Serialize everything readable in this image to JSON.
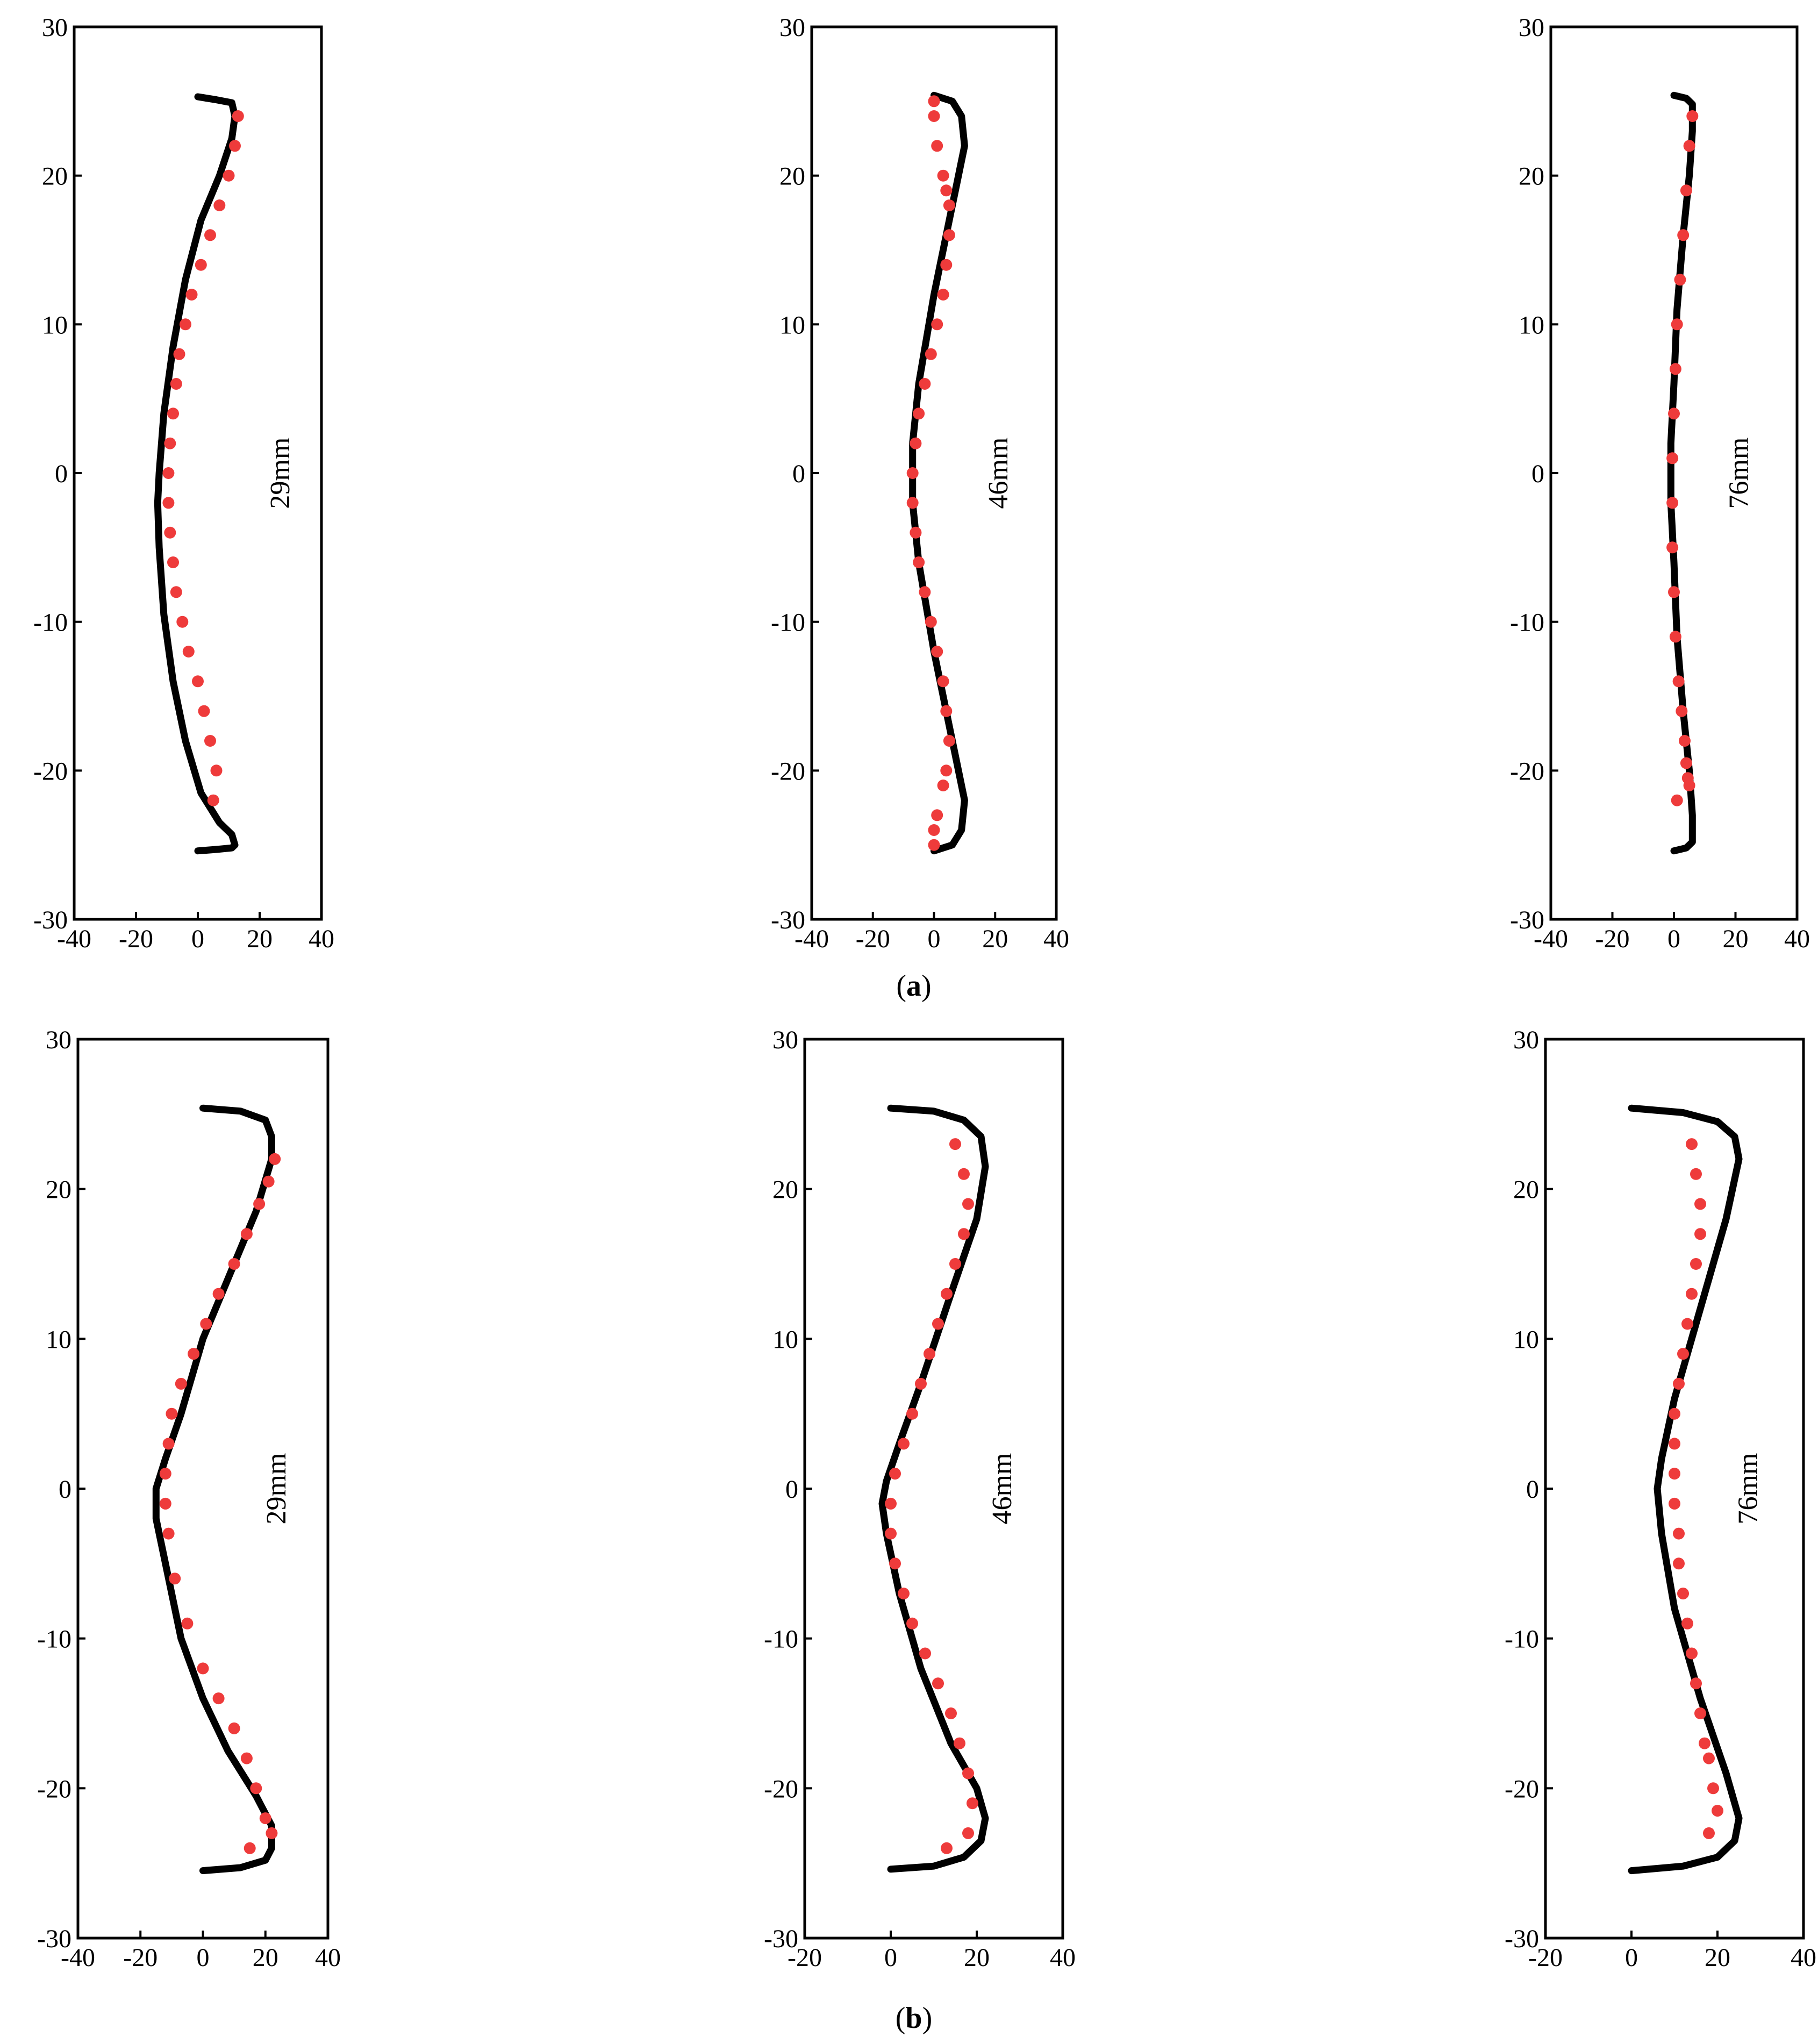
{
  "colors": {
    "simulation": "#000000",
    "experiment": "#ee3b3b",
    "axes": "#000000"
  },
  "captions": {
    "a": {
      "open": "(",
      "letter": "a",
      "close": ")"
    },
    "b": {
      "open": "(",
      "letter": "b",
      "close": ")"
    }
  },
  "chart_data": [
    {
      "id": "a1",
      "type": "scatter",
      "annotation": "29mm",
      "xlim": [
        -40,
        40
      ],
      "ylim": [
        -30,
        30
      ],
      "xticks": [
        "-40",
        "-20",
        "0",
        "20",
        "40"
      ],
      "yticks": [
        "30",
        "20",
        "10",
        "0",
        "-10",
        "-20",
        "-30"
      ],
      "grid": false,
      "series": [
        {
          "kind": "line",
          "x": [
            0,
            6,
            11,
            12,
            11,
            7,
            1,
            -4,
            -8,
            -11,
            -12.5,
            -13,
            -12.5,
            -11,
            -8,
            -4,
            1,
            7,
            11,
            12,
            11,
            6,
            0
          ],
          "y": [
            25.3,
            25.1,
            24.9,
            24,
            22.5,
            20,
            17,
            13,
            8.5,
            4,
            0,
            -2,
            -5,
            -9.5,
            -14,
            -18,
            -21.5,
            -23.5,
            -24.3,
            -25,
            -25.2,
            -25.3,
            -25.4
          ]
        },
        {
          "kind": "points",
          "x": [
            13,
            12,
            10,
            7,
            4,
            1,
            -2,
            -4,
            -6,
            -7,
            -8,
            -9,
            -9.5,
            -9.5,
            -9,
            -8,
            -7,
            -5,
            -3,
            0,
            2,
            4,
            6,
            5
          ],
          "y": [
            24,
            22,
            20,
            18,
            16,
            14,
            12,
            10,
            8,
            6,
            4,
            2,
            0,
            -2,
            -4,
            -6,
            -8,
            -10,
            -12,
            -14,
            -16,
            -18,
            -20,
            -22
          ]
        }
      ]
    },
    {
      "id": "a2",
      "type": "scatter",
      "annotation": "46mm",
      "xlim": [
        -40,
        40
      ],
      "ylim": [
        -30,
        30
      ],
      "xticks": [
        "-40",
        "-20",
        "0",
        "20",
        "40"
      ],
      "yticks": [
        "30",
        "20",
        "10",
        "0",
        "-10",
        "-20",
        "-30"
      ],
      "grid": false,
      "series": [
        {
          "kind": "line",
          "x": [
            0,
            6,
            9,
            10,
            8,
            5,
            0,
            -5,
            -7,
            -7,
            -5,
            0,
            5,
            8,
            10,
            9,
            6,
            0
          ],
          "y": [
            25.4,
            25,
            24,
            22,
            20,
            17,
            12,
            6,
            2,
            -2,
            -6,
            -12,
            -17,
            -20,
            -22,
            -24,
            -25,
            -25.4
          ]
        },
        {
          "kind": "points",
          "x": [
            0,
            0,
            1,
            3,
            4,
            5,
            5,
            4,
            3,
            1,
            -1,
            -3,
            -5,
            -6,
            -7,
            -7,
            -6,
            -5,
            -3,
            -1,
            1,
            3,
            4,
            5,
            4,
            3,
            1,
            0,
            0
          ],
          "y": [
            25,
            24,
            22,
            20,
            19,
            18,
            16,
            14,
            12,
            10,
            8,
            6,
            4,
            2,
            0,
            -2,
            -4,
            -6,
            -8,
            -10,
            -12,
            -14,
            -16,
            -18,
            -20,
            -21,
            -23,
            -24,
            -25
          ]
        }
      ]
    },
    {
      "id": "a3",
      "type": "scatter",
      "annotation": "76mm",
      "xlim": [
        -40,
        40
      ],
      "ylim": [
        -30,
        30
      ],
      "xticks": [
        "-40",
        "-20",
        "0",
        "20",
        "40"
      ],
      "yticks": [
        "30",
        "20",
        "10",
        "0",
        "-10",
        "-20",
        "-30"
      ],
      "grid": false,
      "series": [
        {
          "kind": "line",
          "x": [
            0,
            4,
            6,
            6,
            5,
            3,
            1,
            0,
            -1,
            -1,
            0,
            1,
            3,
            5,
            6,
            6,
            4,
            0
          ],
          "y": [
            25.4,
            25.2,
            24.8,
            23,
            20,
            16,
            11,
            6,
            2,
            -2,
            -6,
            -11,
            -16,
            -20,
            -23,
            -24.8,
            -25.2,
            -25.4
          ]
        },
        {
          "kind": "points",
          "x": [
            6,
            5,
            4,
            3,
            2,
            1,
            0.5,
            0,
            -0.5,
            -0.5,
            -0.5,
            0,
            0.5,
            1.5,
            2.5,
            3.5,
            4,
            4.5,
            5,
            1
          ],
          "y": [
            24,
            22,
            19,
            16,
            13,
            10,
            7,
            4,
            1,
            -2,
            -5,
            -8,
            -11,
            -14,
            -16,
            -18,
            -19.5,
            -20.5,
            -21,
            -22
          ]
        }
      ]
    },
    {
      "id": "b1",
      "type": "scatter",
      "annotation": "29mm",
      "xlim": [
        -40,
        40
      ],
      "ylim": [
        -30,
        30
      ],
      "xticks": [
        "-40",
        "-20",
        "0",
        "20",
        "40"
      ],
      "yticks": [
        "30",
        "20",
        "10",
        "0",
        "-10",
        "-20",
        "-30"
      ],
      "grid": false,
      "series": [
        {
          "kind": "line",
          "x": [
            0,
            12,
            20,
            22,
            22,
            17,
            8,
            0,
            -7,
            -12,
            -15,
            -15,
            -12,
            -7,
            0,
            8,
            17,
            22,
            22,
            20,
            12,
            0
          ],
          "y": [
            25.4,
            25.2,
            24.6,
            23.5,
            22,
            18.5,
            14,
            10,
            5,
            2,
            0,
            -2,
            -5,
            -10,
            -14,
            -17.5,
            -20.5,
            -22.5,
            -24,
            -24.8,
            -25.3,
            -25.5
          ]
        },
        {
          "kind": "points",
          "x": [
            23,
            21,
            18,
            14,
            10,
            5,
            1,
            -3,
            -7,
            -10,
            -11,
            -12,
            -12,
            -11,
            -9,
            -5,
            0,
            5,
            10,
            14,
            17,
            20,
            22,
            15
          ],
          "y": [
            22,
            20.5,
            19,
            17,
            15,
            13,
            11,
            9,
            7,
            5,
            3,
            1,
            -1,
            -3,
            -6,
            -9,
            -12,
            -14,
            -16,
            -18,
            -20,
            -22,
            -23,
            -24
          ]
        }
      ]
    },
    {
      "id": "b2",
      "type": "scatter",
      "annotation": "46mm",
      "xlim": [
        -20,
        40
      ],
      "ylim": [
        -30,
        30
      ],
      "xticks": [
        "-20",
        "0",
        "20",
        "40"
      ],
      "yticks": [
        "30",
        "20",
        "10",
        "0",
        "-10",
        "-20",
        "-30"
      ],
      "grid": false,
      "series": [
        {
          "kind": "line",
          "x": [
            0,
            10,
            17,
            21,
            22,
            20,
            14,
            7,
            2,
            -1,
            -2,
            -1,
            2,
            7,
            14,
            20,
            22,
            21,
            17,
            10,
            0
          ],
          "y": [
            25.4,
            25.2,
            24.6,
            23.5,
            21.5,
            18,
            13,
            7,
            3,
            0.5,
            -1,
            -3,
            -7,
            -12,
            -17,
            -20,
            -22,
            -23.5,
            -24.6,
            -25.2,
            -25.4
          ]
        },
        {
          "kind": "points",
          "x": [
            15,
            17,
            18,
            17,
            15,
            13,
            11,
            9,
            7,
            5,
            3,
            1,
            0,
            0,
            1,
            3,
            5,
            8,
            11,
            14,
            16,
            18,
            19,
            18,
            13
          ],
          "y": [
            23,
            21,
            19,
            17,
            15,
            13,
            11,
            9,
            7,
            5,
            3,
            1,
            -1,
            -3,
            -5,
            -7,
            -9,
            -11,
            -13,
            -15,
            -17,
            -19,
            -21,
            -23,
            -24
          ]
        }
      ]
    },
    {
      "id": "b3",
      "type": "scatter",
      "annotation": "76mm",
      "xlim": [
        -20,
        40
      ],
      "ylim": [
        -30,
        30
      ],
      "xticks": [
        "-20",
        "0",
        "20",
        "40"
      ],
      "yticks": [
        "30",
        "20",
        "10",
        "0",
        "-10",
        "-20",
        "-30"
      ],
      "grid": false,
      "series": [
        {
          "kind": "line",
          "x": [
            0,
            12,
            20,
            24,
            25,
            22,
            16,
            10,
            7,
            6,
            7,
            10,
            16,
            22,
            25,
            24,
            20,
            12,
            0
          ],
          "y": [
            25.4,
            25.1,
            24.5,
            23.5,
            22,
            18,
            12,
            6,
            2,
            0,
            -3,
            -8,
            -14,
            -19,
            -22,
            -23.5,
            -24.6,
            -25.2,
            -25.5
          ]
        },
        {
          "kind": "points",
          "x": [
            14,
            15,
            16,
            16,
            15,
            14,
            13,
            12,
            11,
            10,
            10,
            10,
            10,
            11,
            11,
            12,
            13,
            14,
            15,
            16,
            17,
            18,
            19,
            20,
            18
          ],
          "y": [
            23,
            21,
            19,
            17,
            15,
            13,
            11,
            9,
            7,
            5,
            3,
            1,
            -1,
            -3,
            -5,
            -7,
            -9,
            -11,
            -13,
            -15,
            -17,
            -18,
            -20,
            -21.5,
            -23
          ]
        }
      ]
    }
  ]
}
